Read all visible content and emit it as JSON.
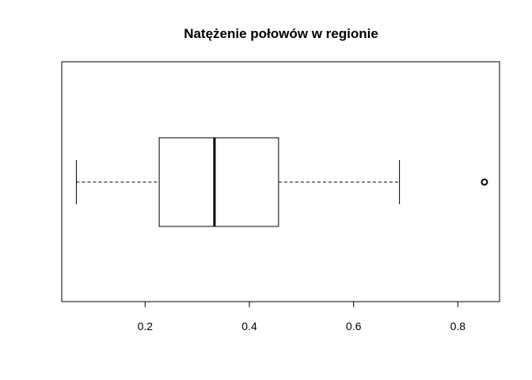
{
  "chart_data": {
    "type": "boxplot",
    "orientation": "horizontal",
    "title": "Natężenie połowów w regionie",
    "xlabel": "",
    "ylabel": "",
    "xlim": [
      0.04,
      0.88
    ],
    "ticks": [
      0.2,
      0.4,
      0.6,
      0.8
    ],
    "tick_labels": [
      "0.2",
      "0.4",
      "0.6",
      "0.8"
    ],
    "grid": false,
    "box": {
      "whisker_low": 0.068,
      "q1": 0.227,
      "median": 0.333,
      "q3": 0.456,
      "whisker_high": 0.688
    },
    "outliers": [
      0.851
    ]
  }
}
